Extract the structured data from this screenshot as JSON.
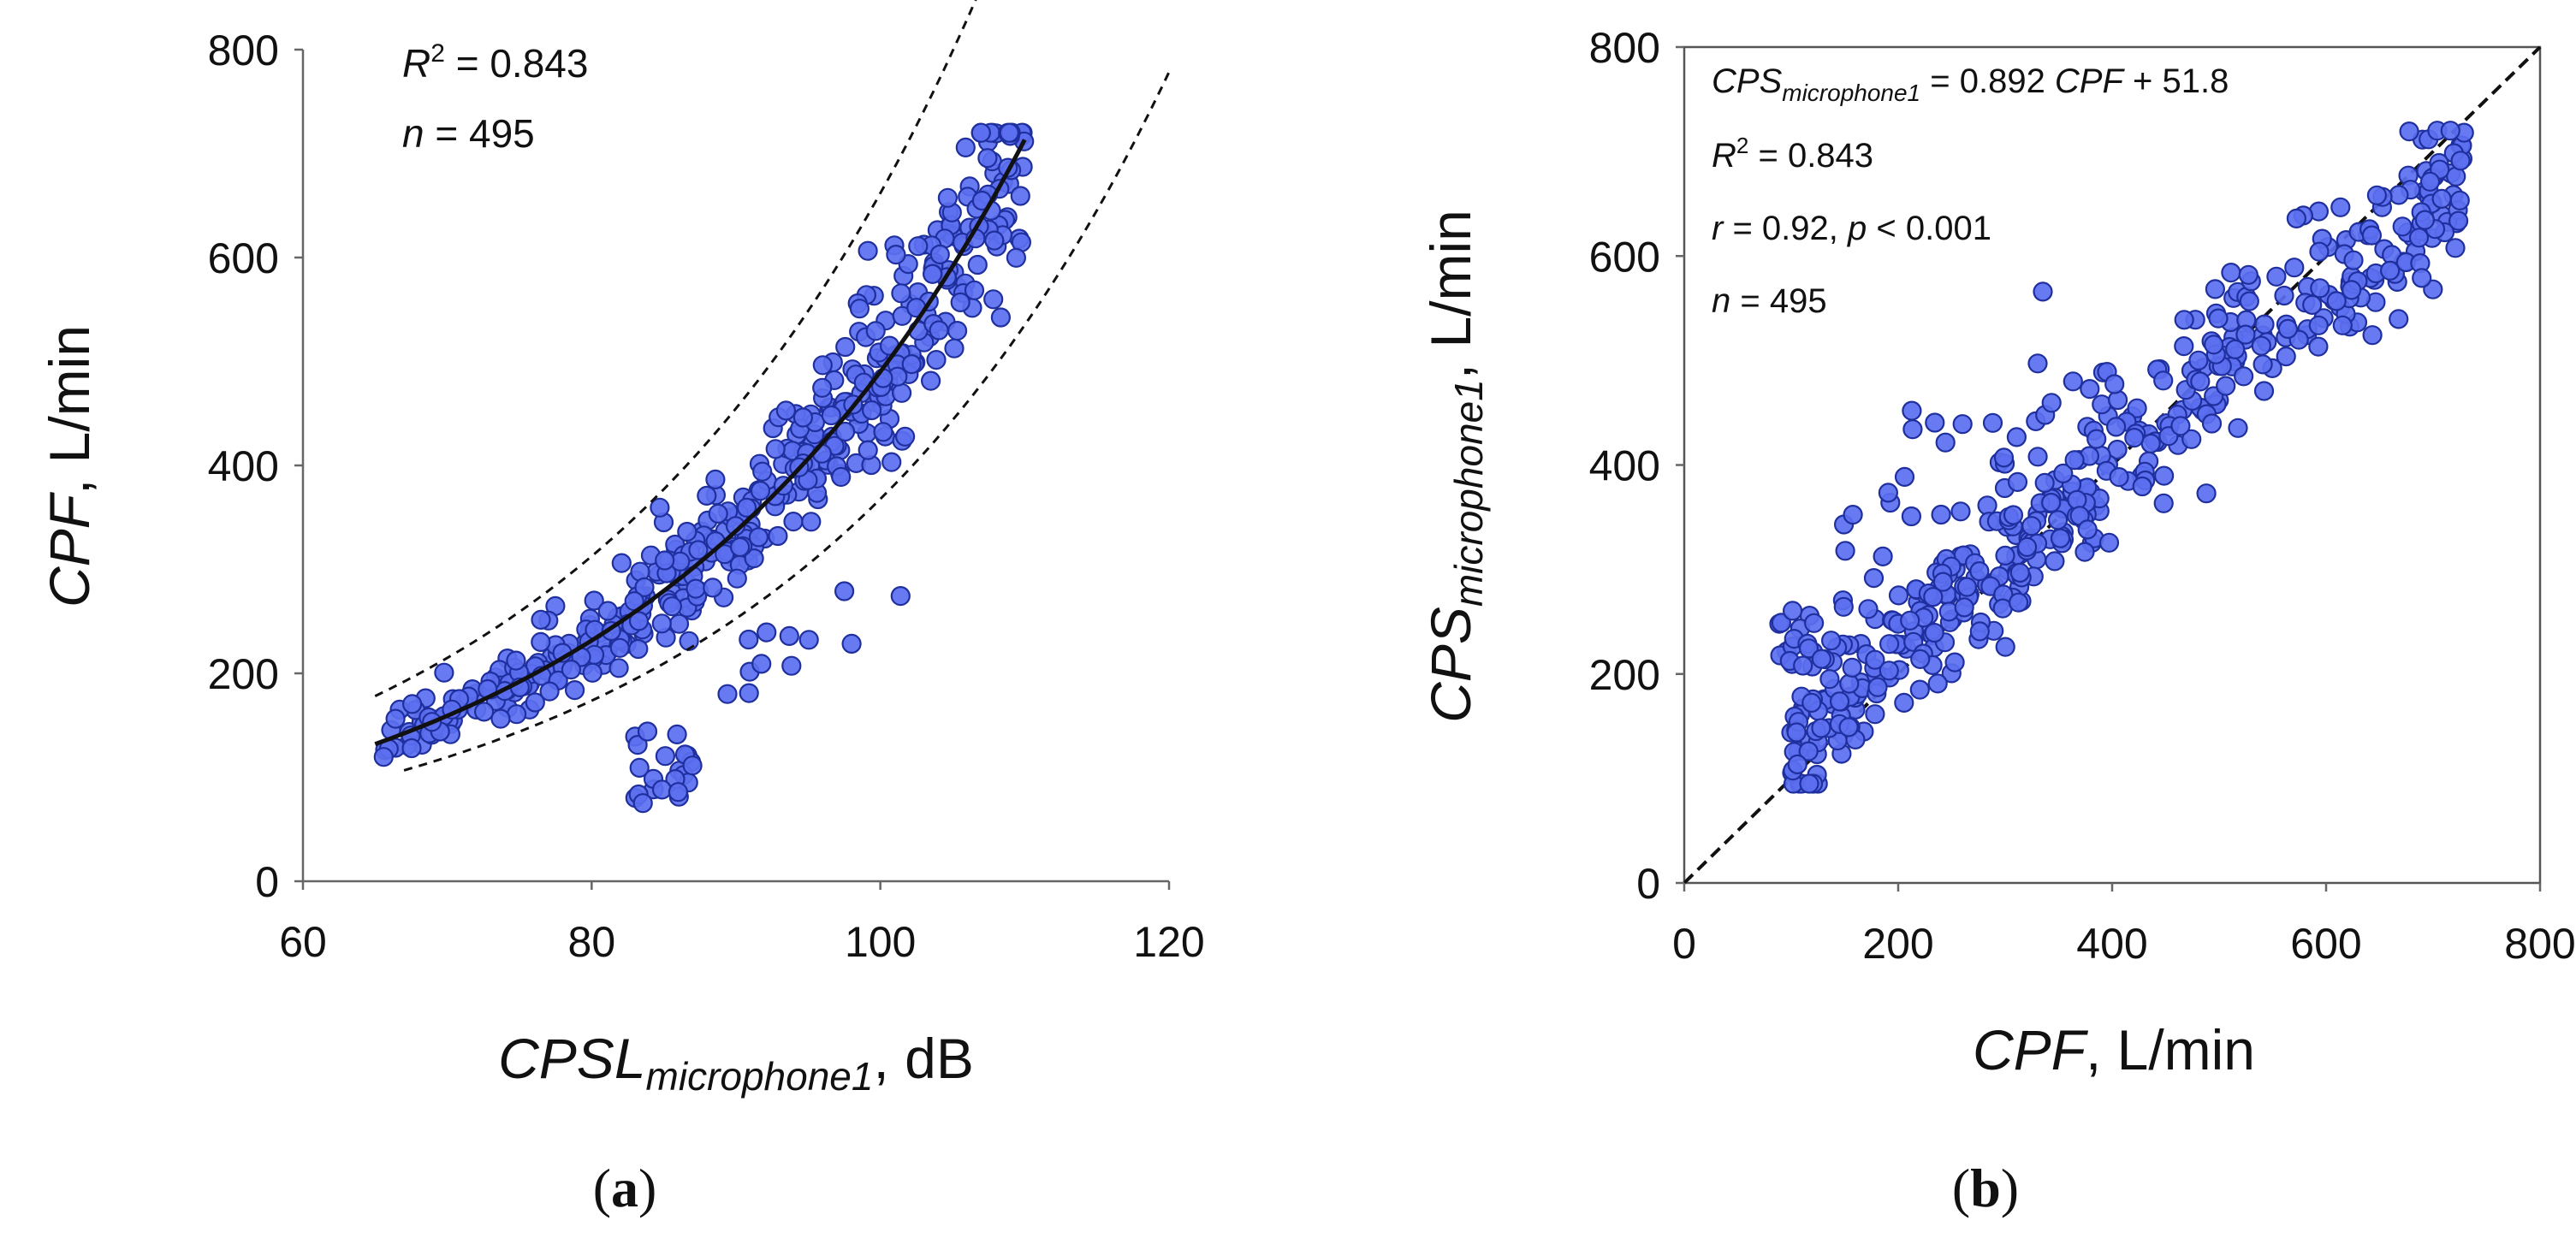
{
  "chart_data": [
    {
      "type": "scatter",
      "panel_label": "a",
      "xlabel": {
        "main": "CPSL",
        "sub": "microphone1",
        "unit": ", dB"
      },
      "ylabel": {
        "main": "CPF",
        "unit": ", L/min"
      },
      "xlim": [
        60,
        120
      ],
      "ylim": [
        0,
        800
      ],
      "xticks": [
        "60",
        "80",
        "100",
        "120"
      ],
      "yticks": [
        "0",
        "200",
        "400",
        "600",
        "800"
      ],
      "frame": "left-bottom",
      "annotations": [
        {
          "main": "R",
          "sup": "2",
          "text": " = 0.843"
        },
        {
          "main": "n",
          "text": " = 495"
        }
      ],
      "fit": {
        "model": "exponential",
        "a": 11.53,
        "b": 0.0375,
        "x_range": [
          65,
          110
        ]
      },
      "prediction_band": {
        "lower_factor": 0.75,
        "upper_factor": 1.35,
        "upper_x_range": [
          65,
          108
        ],
        "lower_x_range": [
          67,
          120
        ]
      },
      "n_points": 495,
      "seed": 7
    },
    {
      "type": "scatter",
      "panel_label": "b",
      "xlabel": {
        "main": "CPF",
        "unit": ", L/min"
      },
      "ylabel": {
        "main": "CPS",
        "sub": "microphone1",
        "unit": ", L/min"
      },
      "xlim": [
        0,
        800
      ],
      "ylim": [
        0,
        800
      ],
      "xticks": [
        "0",
        "200",
        "400",
        "600",
        "800"
      ],
      "yticks": [
        "0",
        "200",
        "400",
        "600",
        "800"
      ],
      "frame": "box",
      "annotations": [
        {
          "main": "CPS",
          "sub": "microphone1",
          "text": " =  0.892 ",
          "italic2": "CPF",
          "text2": " + 51.8"
        },
        {
          "main": "R",
          "sup": "2",
          "text": " = 0.843"
        },
        {
          "main": "r",
          "text": " = 0.92, ",
          "italic2": "p",
          "text2": " < 0.001"
        },
        {
          "main": "n",
          "text": " = 495"
        }
      ],
      "identity_line": true,
      "regression": {
        "slope": 0.892,
        "intercept": 51.8
      },
      "n_points": 495,
      "seed": 11
    }
  ]
}
